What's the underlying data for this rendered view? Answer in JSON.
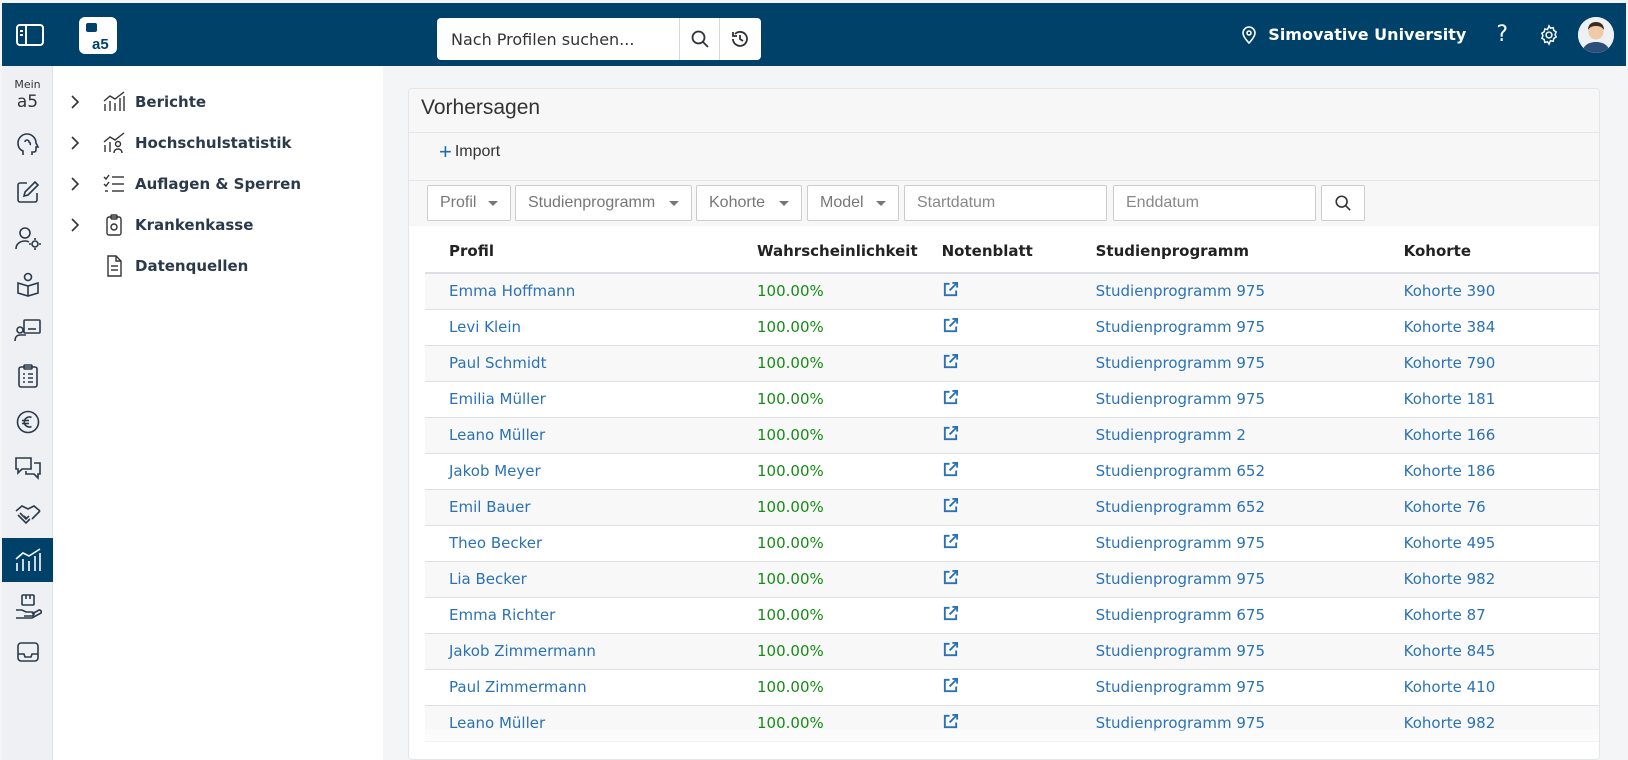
{
  "header": {
    "logo_text": "a5",
    "search_placeholder": "Nach Profilen suchen...",
    "university": "Simovative University",
    "help_label": "?"
  },
  "rail": {
    "mein_label": "Mein",
    "mein_logo": "a5",
    "icons": [
      "brain-icon",
      "edit-icon",
      "user-settings-icon",
      "book-icon",
      "teacher-icon",
      "clipboard-icon",
      "euro-icon",
      "chat-icon",
      "handshake-icon",
      "analytics-icon",
      "hand-box-icon",
      "inbox-icon"
    ],
    "active_index": 9
  },
  "nav": {
    "items": [
      {
        "label": "Berichte",
        "icon": "chart-icon",
        "expandable": true
      },
      {
        "label": "Hochschulstatistik",
        "icon": "chart-people-icon",
        "expandable": true
      },
      {
        "label": "Auflagen & Sperren",
        "icon": "checklist-icon",
        "expandable": true
      },
      {
        "label": "Krankenkasse",
        "icon": "clipboard-icon",
        "expandable": true
      },
      {
        "label": "Datenquellen",
        "icon": "document-icon",
        "expandable": false
      }
    ]
  },
  "main": {
    "title": "Vorhersagen",
    "import_label": "Import",
    "filters": {
      "profil": "Profil",
      "studienprogramm": "Studienprogramm",
      "kohorte": "Kohorte",
      "model": "Model",
      "startdatum_placeholder": "Startdatum",
      "enddatum_placeholder": "Enddatum"
    },
    "columns": [
      "Profil",
      "Wahrscheinlichkeit",
      "Notenblatt",
      "Studienprogramm",
      "Kohorte"
    ],
    "rows": [
      {
        "profil": "Emma Hoffmann",
        "prob": "100.00%",
        "prog": "Studienprogramm 975",
        "kohorte": "Kohorte 390"
      },
      {
        "profil": "Levi Klein",
        "prob": "100.00%",
        "prog": "Studienprogramm 975",
        "kohorte": "Kohorte 384"
      },
      {
        "profil": "Paul Schmidt",
        "prob": "100.00%",
        "prog": "Studienprogramm 975",
        "kohorte": "Kohorte 790"
      },
      {
        "profil": "Emilia Müller",
        "prob": "100.00%",
        "prog": "Studienprogramm 975",
        "kohorte": "Kohorte 181"
      },
      {
        "profil": "Leano Müller",
        "prob": "100.00%",
        "prog": "Studienprogramm 2",
        "kohorte": "Kohorte 166"
      },
      {
        "profil": "Jakob Meyer",
        "prob": "100.00%",
        "prog": "Studienprogramm 652",
        "kohorte": "Kohorte 186"
      },
      {
        "profil": "Emil Bauer",
        "prob": "100.00%",
        "prog": "Studienprogramm 652",
        "kohorte": "Kohorte 76"
      },
      {
        "profil": "Theo Becker",
        "prob": "100.00%",
        "prog": "Studienprogramm 975",
        "kohorte": "Kohorte 495"
      },
      {
        "profil": "Lia Becker",
        "prob": "100.00%",
        "prog": "Studienprogramm 975",
        "kohorte": "Kohorte 982"
      },
      {
        "profil": "Emma Richter",
        "prob": "100.00%",
        "prog": "Studienprogramm 675",
        "kohorte": "Kohorte 87"
      },
      {
        "profil": "Jakob Zimmermann",
        "prob": "100.00%",
        "prog": "Studienprogramm 975",
        "kohorte": "Kohorte 845"
      },
      {
        "profil": "Paul Zimmermann",
        "prob": "100.00%",
        "prog": "Studienprogramm 975",
        "kohorte": "Kohorte 410"
      },
      {
        "profil": "Leano Müller",
        "prob": "100.00%",
        "prog": "Studienprogramm 975",
        "kohorte": "Kohorte 982"
      }
    ]
  },
  "colors": {
    "brand": "#00416a",
    "link": "#2a72b5",
    "success": "#158c15"
  }
}
